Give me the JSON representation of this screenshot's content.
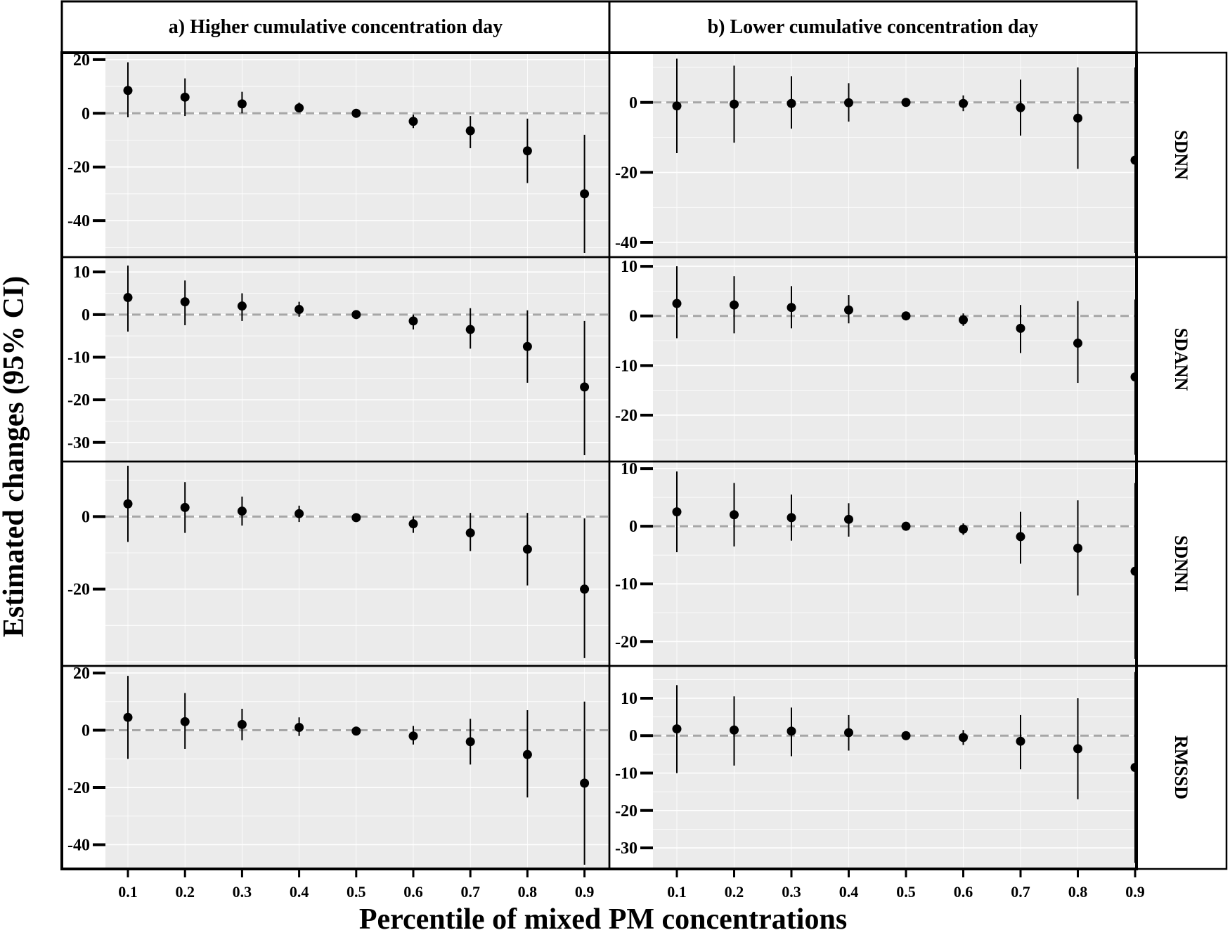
{
  "chart_data": {
    "type": "scatter",
    "subtype": "point-range (estimate with 95% CI error bars), faceted grid",
    "xlabel": "Percentile of mixed PM concentrations",
    "ylabel": "Estimated changes (95% CI)",
    "x": [
      0.1,
      0.2,
      0.3,
      0.4,
      0.5,
      0.6,
      0.7,
      0.8,
      0.9
    ],
    "x_tick_labels": [
      "0.1",
      "0.2",
      "0.3",
      "0.4",
      "0.5",
      "0.6",
      "0.7",
      "0.8",
      "0.9"
    ],
    "columns": [
      "a) Higher cumulative concentration day",
      "b) Lower cumulative concentration day"
    ],
    "rows": [
      "SDNN",
      "SDANN",
      "SDNNI",
      "RMSSD"
    ],
    "reference_line": {
      "y": 0,
      "style": "dashed",
      "color": "#a6a6a6"
    },
    "panel_background": "#ebebeb",
    "grid": true,
    "point_color": "#000000",
    "panels": [
      {
        "column": "a) Higher cumulative concentration day",
        "row": "SDNN",
        "ylim": [
          -52,
          21
        ],
        "yticks": [
          20,
          0,
          -20,
          -40
        ],
        "estimate": [
          8.5,
          6,
          3.5,
          2,
          0,
          -3,
          -6.5,
          -14,
          -30
        ],
        "lower": [
          -1.5,
          -1,
          0,
          0.5,
          -0.5,
          -5.5,
          -13,
          -26,
          -52
        ],
        "upper": [
          19,
          13,
          8,
          4,
          0.5,
          -0.5,
          -1,
          -2,
          -8
        ]
      },
      {
        "column": "b) Lower cumulative concentration day",
        "row": "SDNN",
        "ylim": [
          -43,
          13
        ],
        "yticks": [
          0,
          -20,
          -40
        ],
        "estimate": [
          -1,
          -0.5,
          -0.3,
          -0.1,
          0,
          -0.3,
          -1.5,
          -4.5,
          -16.5
        ],
        "lower": [
          -14.5,
          -11.5,
          -7.5,
          -5.5,
          -0.5,
          -2.5,
          -9.5,
          -19,
          -43
        ],
        "upper": [
          12.5,
          10.5,
          7.5,
          5.5,
          0.5,
          2,
          6.5,
          10,
          10
        ]
      },
      {
        "column": "a) Higher cumulative concentration day",
        "row": "SDANN",
        "ylim": [
          -33.5,
          12.5
        ],
        "yticks": [
          10,
          0,
          -10,
          -20,
          -30
        ],
        "estimate": [
          4,
          3,
          2,
          1.2,
          0,
          -1.5,
          -3.5,
          -7.5,
          -17
        ],
        "lower": [
          -4,
          -2.5,
          -1.5,
          -0.5,
          -0.3,
          -3.5,
          -8,
          -16,
          -33
        ],
        "upper": [
          11.5,
          8,
          5,
          3,
          0.3,
          0,
          1.5,
          1,
          -1.5
        ]
      },
      {
        "column": "b) Lower cumulative concentration day",
        "row": "SDANN",
        "ylim": [
          -28.5,
          11
        ],
        "yticks": [
          10,
          0,
          -10,
          -20
        ],
        "estimate": [
          2.5,
          2.2,
          1.7,
          1.2,
          0,
          -0.8,
          -2.5,
          -5.5,
          -12.3
        ],
        "lower": [
          -4.5,
          -3.5,
          -2.5,
          -1.5,
          -0.3,
          -2,
          -7.5,
          -13.5,
          -28
        ],
        "upper": [
          10,
          8,
          6,
          4.2,
          0.3,
          0.5,
          2.2,
          3,
          3.3
        ]
      },
      {
        "column": "a) Higher cumulative concentration day",
        "row": "SDNNI",
        "ylim": [
          -40,
          14
        ],
        "yticks": [
          0,
          -20
        ],
        "estimate": [
          3.5,
          2.5,
          1.5,
          0.8,
          -0.3,
          -2,
          -4.5,
          -9,
          -20
        ],
        "lower": [
          -7,
          -4.5,
          -2.5,
          -1.5,
          -0.7,
          -4.5,
          -9.5,
          -19,
          -39
        ],
        "upper": [
          14,
          9.5,
          5.5,
          3,
          0.3,
          0,
          1,
          1,
          -0.5
        ]
      },
      {
        "column": "b) Lower cumulative concentration day",
        "row": "SDNNI",
        "ylim": [
          -23.5,
          10.5
        ],
        "yticks": [
          10,
          0,
          -10,
          -20
        ],
        "estimate": [
          2.5,
          2,
          1.5,
          1.2,
          0,
          -0.5,
          -1.8,
          -3.8,
          -7.8
        ],
        "lower": [
          -4.5,
          -3.5,
          -2.5,
          -1.8,
          -0.3,
          -1.5,
          -6.5,
          -12,
          -23
        ],
        "upper": [
          9.5,
          7.5,
          5.5,
          4,
          0.3,
          0.5,
          2.5,
          4.5,
          7.5
        ]
      },
      {
        "column": "a) Higher cumulative concentration day",
        "row": "RMSSD",
        "ylim": [
          -47,
          21
        ],
        "yticks": [
          20,
          0,
          -20,
          -40
        ],
        "estimate": [
          4.5,
          3,
          2,
          1,
          -0.3,
          -2,
          -4,
          -8.5,
          -18.5
        ],
        "lower": [
          -10,
          -6.5,
          -3.5,
          -2,
          -0.8,
          -5,
          -12,
          -23.5,
          -47
        ],
        "upper": [
          19,
          13,
          7.5,
          4.5,
          0.3,
          1.5,
          4,
          7,
          10
        ]
      },
      {
        "column": "b) Lower cumulative concentration day",
        "row": "RMSSD",
        "ylim": [
          -34.5,
          17.5
        ],
        "yticks": [
          10,
          0,
          -10,
          -20,
          -30
        ],
        "estimate": [
          1.8,
          1.5,
          1.2,
          0.8,
          0,
          -0.5,
          -1.5,
          -3.5,
          -8.5
        ],
        "lower": [
          -10,
          -8,
          -5.5,
          -4,
          -0.3,
          -2.5,
          -9,
          -17,
          -34
        ],
        "upper": [
          13.5,
          10.5,
          7.5,
          5.5,
          0.3,
          1.5,
          5.5,
          10,
          17
        ]
      }
    ]
  }
}
